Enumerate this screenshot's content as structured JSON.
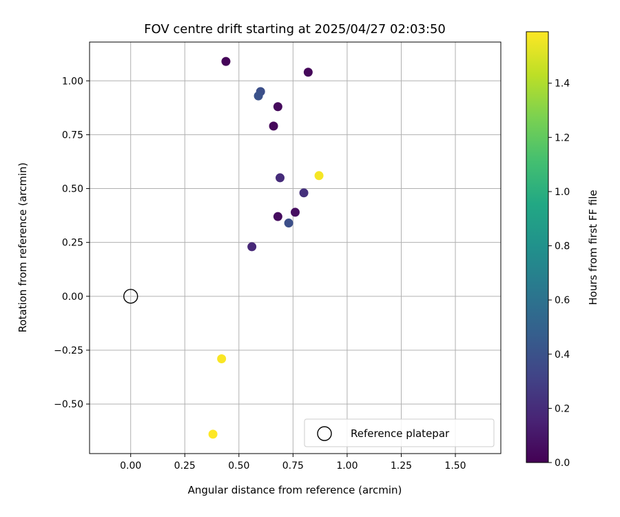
{
  "chart_data": {
    "type": "scatter",
    "title": "FOV centre drift starting at 2025/04/27 02:03:50",
    "xlabel": "Angular distance from reference (arcmin)",
    "ylabel": "Rotation from reference (arcmin)",
    "xlim": [
      -0.19,
      1.71
    ],
    "ylim": [
      -0.73,
      1.18
    ],
    "xticks": [
      0.0,
      0.25,
      0.5,
      0.75,
      1.0,
      1.25,
      1.5
    ],
    "xtick_labels": [
      "0.00",
      "0.25",
      "0.50",
      "0.75",
      "1.00",
      "1.25",
      "1.50"
    ],
    "yticks": [
      -0.5,
      -0.25,
      0.0,
      0.25,
      0.5,
      0.75,
      1.0
    ],
    "ytick_labels": [
      "−0.50",
      "−0.25",
      "0.00",
      "0.25",
      "0.50",
      "0.75",
      "1.00"
    ],
    "grid": true,
    "colormap": "viridis",
    "colorbar": {
      "label": "Hours from first FF file",
      "range": [
        0.0,
        1.59
      ],
      "ticks": [
        0.0,
        0.2,
        0.4,
        0.6,
        0.8,
        1.0,
        1.2,
        1.4
      ],
      "tick_labels": [
        "0.0",
        "0.2",
        "0.4",
        "0.6",
        "0.8",
        "1.0",
        "1.2",
        "1.4"
      ]
    },
    "points": [
      {
        "x": 0.44,
        "y": 1.09,
        "hours": 0.02
      },
      {
        "x": 0.82,
        "y": 1.04,
        "hours": 0.03
      },
      {
        "x": 0.6,
        "y": 0.95,
        "hours": 0.38
      },
      {
        "x": 0.59,
        "y": 0.93,
        "hours": 0.4
      },
      {
        "x": 0.68,
        "y": 0.88,
        "hours": 0.04
      },
      {
        "x": 0.66,
        "y": 0.79,
        "hours": 0.03
      },
      {
        "x": 0.87,
        "y": 0.56,
        "hours": 1.57
      },
      {
        "x": 0.69,
        "y": 0.55,
        "hours": 0.2
      },
      {
        "x": 0.8,
        "y": 0.48,
        "hours": 0.22
      },
      {
        "x": 0.76,
        "y": 0.39,
        "hours": 0.06
      },
      {
        "x": 0.68,
        "y": 0.37,
        "hours": 0.05
      },
      {
        "x": 0.73,
        "y": 0.34,
        "hours": 0.38
      },
      {
        "x": 0.56,
        "y": 0.23,
        "hours": 0.18
      },
      {
        "x": 0.42,
        "y": -0.29,
        "hours": 1.58
      },
      {
        "x": 0.38,
        "y": -0.64,
        "hours": 1.59
      }
    ],
    "reference": {
      "x": 0.0,
      "y": 0.0
    },
    "legend": {
      "position": "lower-right",
      "entries": [
        "Reference platepar"
      ]
    }
  }
}
